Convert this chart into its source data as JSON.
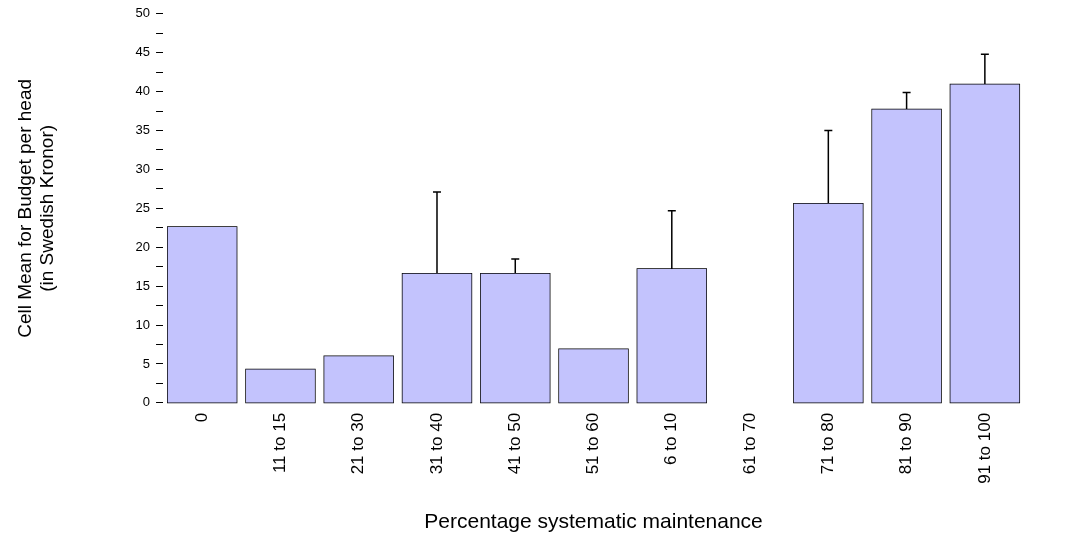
{
  "chart_data": {
    "type": "bar",
    "categories": [
      "0",
      "11 to 15",
      "21 to 30",
      "31 to 40",
      "41 to 50",
      "51 to 60",
      "6 to 10",
      "61 to 70",
      "71 to 80",
      "81 to 90",
      "91 to 100"
    ],
    "values": [
      22.6,
      4.3,
      6.0,
      16.6,
      16.6,
      6.9,
      17.2,
      null,
      25.6,
      37.7,
      40.9
    ],
    "errors": [
      null,
      null,
      null,
      [
        16.6,
        27.1
      ],
      [
        16.6,
        18.5
      ],
      null,
      [
        17.2,
        24.7
      ],
      null,
      [
        25.6,
        35.0
      ],
      [
        37.7,
        39.9
      ],
      [
        40.9,
        44.8
      ]
    ],
    "color": "#c3c3fd",
    "xlabel": "Percentage systematic maintenance",
    "ylabel": "Cell Mean for Budget per head\n(in Swedish Kronor)",
    "ylim": [
      0,
      50
    ],
    "yticks": [
      0,
      {
        "value": 2.5,
        "label": null
      },
      5,
      {
        "value": 7.5,
        "label": null
      },
      10,
      {
        "value": 12.5,
        "label": null
      },
      15,
      {
        "value": 17.5,
        "label": null
      },
      20,
      {
        "value": 22.5,
        "label": null
      },
      25,
      {
        "value": 27.5,
        "label": null
      },
      30,
      {
        "value": 32.5,
        "label": null
      },
      35,
      {
        "value": 37.5,
        "label": null
      },
      40,
      {
        "value": 42.5,
        "label": null
      },
      45,
      {
        "value": 47.5,
        "label": null
      },
      50
    ],
    "grid": false,
    "legend": false
  }
}
